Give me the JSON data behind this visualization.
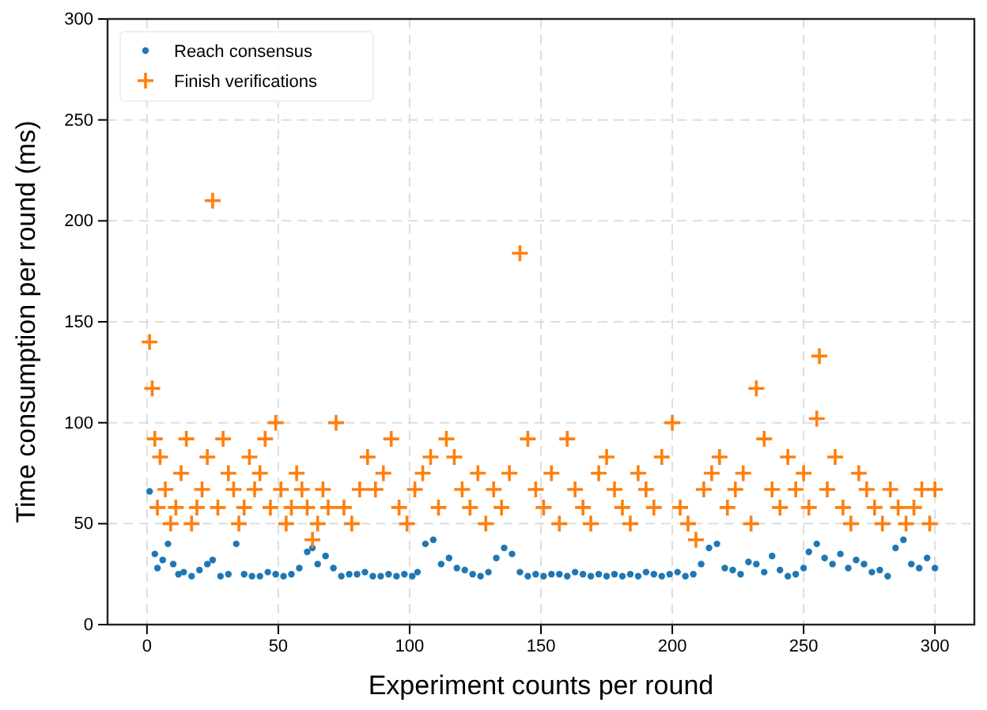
{
  "chart_data": {
    "type": "scatter",
    "xlabel": "Experiment counts per round",
    "ylabel": "Time consumption per round (ms)",
    "xlim": [
      -15,
      315
    ],
    "ylim": [
      0,
      300
    ],
    "xticks": [
      0,
      50,
      100,
      150,
      200,
      250,
      300
    ],
    "yticks": [
      0,
      50,
      100,
      150,
      200,
      250,
      300
    ],
    "grid": true,
    "legend": "top left",
    "series": [
      {
        "name": "Reach consensus",
        "color": "#1f77b4",
        "marker": "circle",
        "x": [
          1,
          3,
          4,
          6,
          8,
          10,
          12,
          14,
          17,
          20,
          23,
          25,
          28,
          31,
          34,
          37,
          40,
          43,
          46,
          49,
          52,
          55,
          58,
          61,
          63,
          65,
          68,
          71,
          74,
          77,
          80,
          83,
          86,
          89,
          92,
          95,
          98,
          101,
          103,
          106,
          109,
          112,
          115,
          118,
          121,
          124,
          127,
          130,
          133,
          136,
          139,
          142,
          145,
          148,
          151,
          154,
          157,
          160,
          163,
          166,
          169,
          172,
          175,
          178,
          181,
          184,
          187,
          190,
          193,
          196,
          199,
          202,
          205,
          208,
          211,
          214,
          217,
          220,
          223,
          226,
          229,
          232,
          235,
          238,
          241,
          244,
          247,
          250,
          252,
          255,
          258,
          261,
          264,
          267,
          270,
          273,
          276,
          279,
          282,
          285,
          288,
          291,
          294,
          297,
          300
        ],
        "values": [
          66,
          35,
          28,
          32,
          40,
          30,
          25,
          26,
          24,
          27,
          30,
          32,
          24,
          25,
          40,
          25,
          24,
          24,
          26,
          25,
          24,
          25,
          28,
          36,
          38,
          30,
          34,
          28,
          24,
          25,
          25,
          26,
          24,
          24,
          25,
          24,
          25,
          24,
          26,
          40,
          42,
          30,
          33,
          28,
          27,
          25,
          24,
          26,
          33,
          38,
          35,
          26,
          24,
          25,
          24,
          25,
          25,
          24,
          26,
          25,
          24,
          25,
          24,
          25,
          24,
          25,
          24,
          26,
          25,
          24,
          25,
          26,
          24,
          25,
          30,
          38,
          40,
          28,
          27,
          25,
          31,
          30,
          26,
          34,
          27,
          24,
          25,
          28,
          36,
          40,
          33,
          30,
          35,
          28,
          32,
          30,
          26,
          27,
          24,
          38,
          42,
          30,
          28,
          33,
          28
        ]
      },
      {
        "name": "Finish verifications",
        "color": "#ff7f0e",
        "marker": "cross",
        "x": [
          1,
          2,
          3,
          4,
          5,
          7,
          9,
          11,
          13,
          15,
          17,
          19,
          21,
          23,
          25,
          27,
          29,
          31,
          33,
          35,
          37,
          39,
          41,
          43,
          45,
          47,
          49,
          51,
          53,
          55,
          57,
          59,
          61,
          63,
          65,
          67,
          69,
          72,
          75,
          78,
          81,
          84,
          87,
          90,
          93,
          96,
          99,
          102,
          105,
          108,
          111,
          114,
          117,
          120,
          123,
          126,
          129,
          132,
          135,
          138,
          142,
          145,
          148,
          151,
          154,
          157,
          160,
          163,
          166,
          169,
          172,
          175,
          178,
          181,
          184,
          187,
          190,
          193,
          196,
          200,
          203,
          206,
          209,
          212,
          215,
          218,
          221,
          224,
          227,
          230,
          232,
          235,
          238,
          241,
          244,
          247,
          250,
          252,
          255,
          256,
          259,
          262,
          265,
          268,
          271,
          274,
          277,
          280,
          283,
          286,
          289,
          292,
          295,
          298,
          300
        ],
        "values": [
          140,
          117,
          92,
          58,
          83,
          67,
          50,
          58,
          75,
          92,
          50,
          58,
          67,
          83,
          210,
          58,
          92,
          75,
          67,
          50,
          58,
          83,
          67,
          75,
          92,
          58,
          100,
          67,
          50,
          58,
          75,
          67,
          58,
          42,
          50,
          67,
          58,
          100,
          58,
          50,
          67,
          83,
          67,
          75,
          92,
          58,
          50,
          67,
          75,
          83,
          58,
          92,
          83,
          67,
          58,
          75,
          50,
          67,
          58,
          75,
          184,
          92,
          67,
          58,
          75,
          50,
          92,
          67,
          58,
          50,
          75,
          83,
          67,
          58,
          50,
          75,
          67,
          58,
          83,
          100,
          58,
          50,
          42,
          67,
          75,
          83,
          58,
          67,
          75,
          50,
          117,
          92,
          67,
          58,
          83,
          67,
          75,
          58,
          102,
          133,
          67,
          83,
          58,
          50,
          75,
          67,
          58,
          50,
          67,
          58,
          50,
          58,
          67,
          50,
          67
        ]
      }
    ]
  }
}
